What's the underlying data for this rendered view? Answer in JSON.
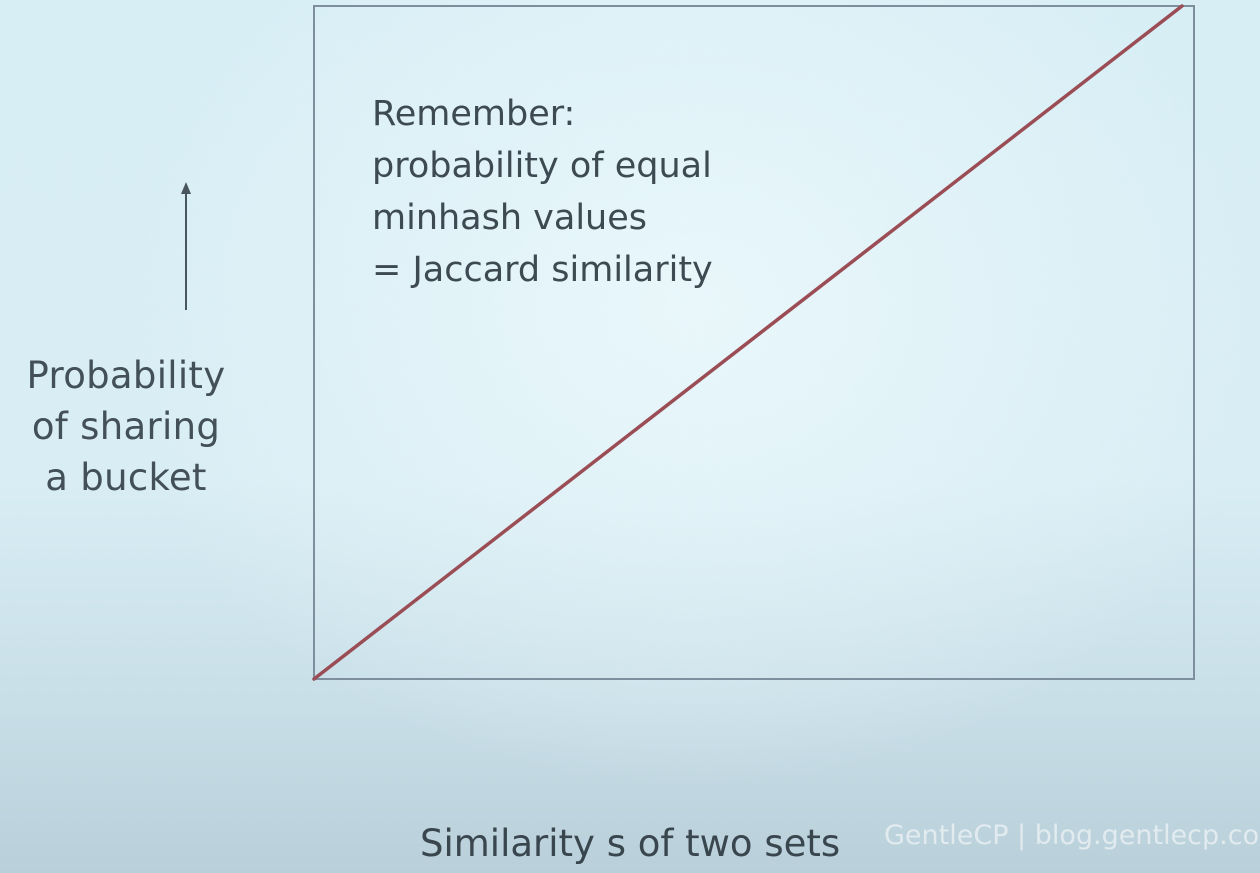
{
  "chart_data": {
    "type": "line",
    "title": "",
    "xlabel": "Similarity s of two sets",
    "ylabel": "Probability\nof sharing\na bucket",
    "xlim": [
      0,
      1
    ],
    "ylim": [
      0,
      1
    ],
    "grid": false,
    "series": [
      {
        "x": [
          0,
          1
        ],
        "y": [
          0,
          1
        ],
        "color": "#9b4d55"
      }
    ],
    "annotation": "Remember:\nprobability of equal\nminhash values\n= Jaccard similarity",
    "frame_color": "#7d8f9c",
    "arrow_color": "#4a565e"
  },
  "watermark": "GentleCP | blog.gentlecp.com"
}
